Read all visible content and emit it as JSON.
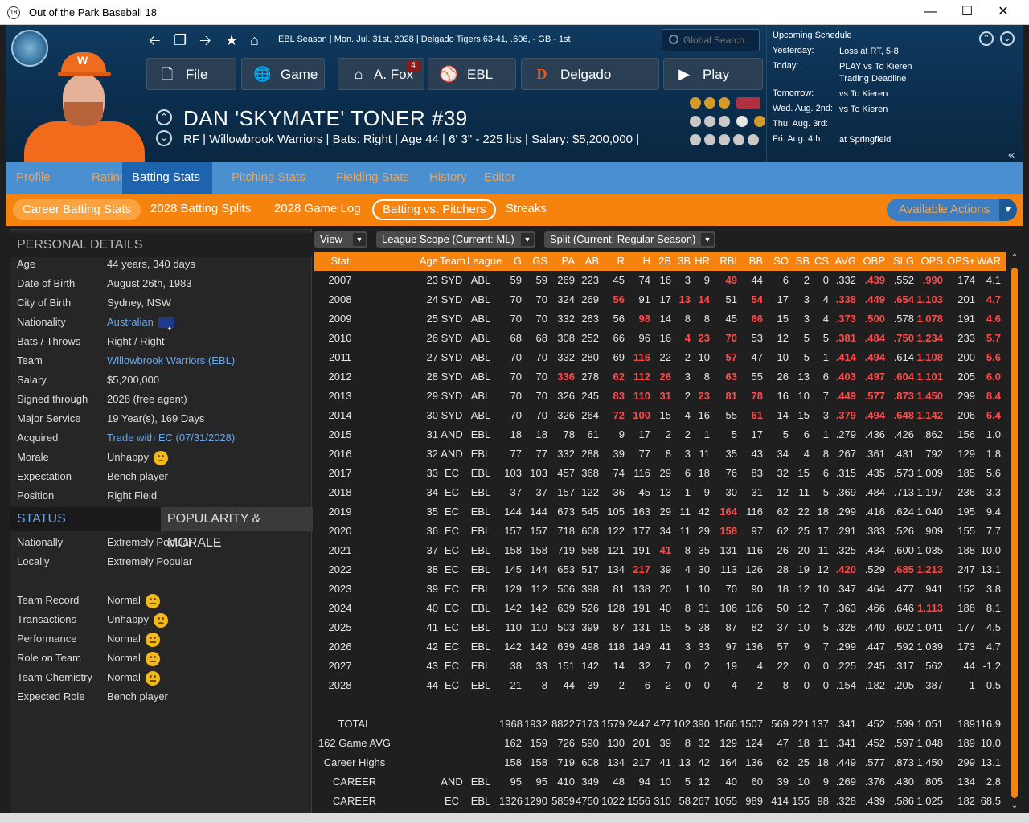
{
  "window": {
    "title": "Out of the Park Baseball 18",
    "app_icon": "18"
  },
  "header": {
    "context": "EBL Season  |  Mon. Jul. 31st, 2028  |  Delgado Tigers  63-41, .606, - GB - 1st",
    "search_placeholder": "Global Search...",
    "nav_buttons": [
      {
        "label": "File",
        "icon": "file-icon",
        "glyph": "🗋"
      },
      {
        "label": "Game",
        "icon": "globe-icon",
        "glyph": "🌐"
      },
      {
        "label": "A. Fox",
        "icon": "home-icon",
        "glyph": "⌂",
        "badge": "4"
      },
      {
        "label": "EBL",
        "icon": "league-logo-icon",
        "glyph": "⚾"
      },
      {
        "label": "Delgado",
        "icon": "team-logo-icon",
        "glyph": "D"
      },
      {
        "label": "Play",
        "icon": "play-icon",
        "glyph": "▶"
      }
    ],
    "player_name": "DAN 'SKYMATE' TONER  #39",
    "player_info": "RF | Willowbrook Warriors  |  Bats: Right  |  Age 44  |  6' 3\" - 225 lbs  |  Salary: $5,200,000  |",
    "cap_letter": "W"
  },
  "schedule": {
    "heading": "Upcoming Schedule",
    "rows": [
      {
        "day": "Yesterday:",
        "text": "Loss at RT, 5-8"
      },
      {
        "day": "Today:",
        "text": "PLAY vs To Kieren",
        "extra": "Trading Deadline"
      },
      {
        "day": "Tomorrow:",
        "text": "vs To Kieren"
      },
      {
        "day": "Wed. Aug. 2nd:",
        "text": "vs To Kieren"
      },
      {
        "day": "Thu. Aug. 3rd:",
        "text": ""
      },
      {
        "day": "Fri. Aug. 4th:",
        "text": "at Springfield"
      }
    ]
  },
  "tabs": [
    "Profile",
    "Ratings",
    "Batting Stats",
    "Pitching Stats",
    "Fielding Stats",
    "History",
    "Editor"
  ],
  "active_tab": "Batting Stats",
  "subtabs": [
    "Career Batting Stats",
    "2028 Batting Splits",
    "2028 Game Log",
    "Batting vs. Pitchers",
    "Streaks"
  ],
  "available_actions": "Available Actions",
  "personal_details": {
    "heading": "PERSONAL DETAILS",
    "rows": [
      {
        "k": "Age",
        "v": "44 years, 340 days"
      },
      {
        "k": "Date of Birth",
        "v": "August 26th, 1983"
      },
      {
        "k": "City of Birth",
        "v": "Sydney, NSW"
      },
      {
        "k": "Nationality",
        "v": "Australian",
        "link": true,
        "flag": true
      },
      {
        "k": "Bats / Throws",
        "v": "Right / Right"
      },
      {
        "k": "Team",
        "v": "Willowbrook Warriors (EBL)",
        "link": true
      },
      {
        "k": "Salary",
        "v": "$5,200,000"
      },
      {
        "k": "Signed through",
        "v": "2028 (free agent)"
      },
      {
        "k": "Major Service",
        "v": "19 Year(s), 169 Days"
      },
      {
        "k": "Acquired",
        "v": "Trade with EC (07/31/2028)",
        "link": true
      },
      {
        "k": "Morale",
        "v": "Unhappy",
        "emoji": "sad"
      },
      {
        "k": "Expectation",
        "v": "Bench player"
      },
      {
        "k": "Position",
        "v": "Right Field"
      }
    ]
  },
  "status": {
    "tab_status": "STATUS",
    "tab_popularity": "POPULARITY & MORALE",
    "rows": [
      {
        "k": "Nationally",
        "v": "Extremely Popular"
      },
      {
        "k": "Locally",
        "v": "Extremely Popular"
      },
      {
        "k": "",
        "v": ""
      },
      {
        "k": "Team Record",
        "v": "Normal",
        "emoji": "neutral"
      },
      {
        "k": "Transactions",
        "v": "Unhappy",
        "emoji": "sad"
      },
      {
        "k": "Performance",
        "v": "Normal",
        "emoji": "neutral"
      },
      {
        "k": "Role on Team",
        "v": "Normal",
        "emoji": "neutral"
      },
      {
        "k": "Team Chemistry",
        "v": "Normal",
        "emoji": "neutral"
      },
      {
        "k": "Expected Role",
        "v": "Bench player"
      }
    ]
  },
  "filters": {
    "view": "View",
    "scope": "League Scope  (Current: ML)",
    "split": "Split  (Current: Regular Season)"
  },
  "columns": [
    "Stat",
    "Age",
    "Team",
    "League",
    "G",
    "GS",
    "PA",
    "AB",
    "R",
    "H",
    "2B",
    "3B",
    "HR",
    "RBI",
    "BB",
    "SO",
    "SB",
    "CS",
    "AVG",
    "OBP",
    "SLG",
    "OPS",
    "OPS+",
    "WAR"
  ],
  "rows": [
    {
      "c": [
        "2007",
        "23",
        "SYD",
        "ABL",
        "59",
        "59",
        "269",
        "223",
        "45",
        "74",
        "16",
        "3",
        "9",
        "49",
        "44",
        "6",
        "2",
        "0",
        ".332",
        ".439",
        ".552",
        ".990",
        "174",
        "4.1"
      ],
      "r": [
        13,
        19,
        21
      ]
    },
    {
      "c": [
        "2008",
        "24",
        "SYD",
        "ABL",
        "70",
        "70",
        "324",
        "269",
        "56",
        "91",
        "17",
        "13",
        "14",
        "51",
        "54",
        "17",
        "3",
        "4",
        ".338",
        ".449",
        ".654",
        "1.103",
        "201",
        "4.7"
      ],
      "r": [
        8,
        11,
        12,
        14,
        18,
        19,
        20,
        21,
        23
      ]
    },
    {
      "c": [
        "2009",
        "25",
        "SYD",
        "ABL",
        "70",
        "70",
        "332",
        "263",
        "56",
        "98",
        "14",
        "8",
        "8",
        "45",
        "66",
        "15",
        "3",
        "4",
        ".373",
        ".500",
        ".578",
        "1.078",
        "191",
        "4.6"
      ],
      "r": [
        9,
        14,
        18,
        19,
        21,
        23
      ]
    },
    {
      "c": [
        "2010",
        "26",
        "SYD",
        "ABL",
        "68",
        "68",
        "308",
        "252",
        "66",
        "96",
        "16",
        "4",
        "23",
        "70",
        "53",
        "12",
        "5",
        "5",
        ".381",
        ".484",
        ".750",
        "1.234",
        "233",
        "5.7"
      ],
      "r": [
        11,
        12,
        13,
        18,
        19,
        20,
        21,
        23
      ]
    },
    {
      "c": [
        "2011",
        "27",
        "SYD",
        "ABL",
        "70",
        "70",
        "332",
        "280",
        "69",
        "116",
        "22",
        "2",
        "10",
        "57",
        "47",
        "10",
        "5",
        "1",
        ".414",
        ".494",
        ".614",
        "1.108",
        "200",
        "5.6"
      ],
      "r": [
        9,
        13,
        18,
        19,
        21,
        23
      ]
    },
    {
      "c": [
        "2012",
        "28",
        "SYD",
        "ABL",
        "70",
        "70",
        "336",
        "278",
        "62",
        "112",
        "26",
        "3",
        "8",
        "63",
        "55",
        "26",
        "13",
        "6",
        ".403",
        ".497",
        ".604",
        "1.101",
        "205",
        "6.0"
      ],
      "r": [
        6,
        8,
        9,
        10,
        13,
        18,
        19,
        20,
        21,
        23
      ]
    },
    {
      "c": [
        "2013",
        "29",
        "SYD",
        "ABL",
        "70",
        "70",
        "326",
        "245",
        "83",
        "110",
        "31",
        "2",
        "23",
        "81",
        "78",
        "16",
        "10",
        "7",
        ".449",
        ".577",
        ".873",
        "1.450",
        "299",
        "8.4"
      ],
      "r": [
        8,
        9,
        10,
        12,
        13,
        14,
        18,
        19,
        20,
        21,
        23
      ]
    },
    {
      "c": [
        "2014",
        "30",
        "SYD",
        "ABL",
        "70",
        "70",
        "326",
        "264",
        "72",
        "100",
        "15",
        "4",
        "16",
        "55",
        "61",
        "14",
        "15",
        "3",
        ".379",
        ".494",
        ".648",
        "1.142",
        "206",
        "6.4"
      ],
      "r": [
        8,
        9,
        14,
        18,
        19,
        20,
        21,
        23
      ]
    },
    {
      "c": [
        "2015",
        "31",
        "AND",
        "EBL",
        "18",
        "18",
        "78",
        "61",
        "9",
        "17",
        "2",
        "2",
        "1",
        "5",
        "17",
        "5",
        "6",
        "1",
        ".279",
        ".436",
        ".426",
        ".862",
        "156",
        "1.0"
      ],
      "r": []
    },
    {
      "c": [
        "2016",
        "32",
        "AND",
        "EBL",
        "77",
        "77",
        "332",
        "288",
        "39",
        "77",
        "8",
        "3",
        "11",
        "35",
        "43",
        "34",
        "4",
        "8",
        ".267",
        ".361",
        ".431",
        ".792",
        "129",
        "1.8"
      ],
      "r": []
    },
    {
      "c": [
        "2017",
        "33",
        "EC",
        "EBL",
        "103",
        "103",
        "457",
        "368",
        "74",
        "116",
        "29",
        "6",
        "18",
        "76",
        "83",
        "32",
        "15",
        "6",
        ".315",
        ".435",
        ".573",
        "1.009",
        "185",
        "5.6"
      ],
      "r": []
    },
    {
      "c": [
        "2018",
        "34",
        "EC",
        "EBL",
        "37",
        "37",
        "157",
        "122",
        "36",
        "45",
        "13",
        "1",
        "9",
        "30",
        "31",
        "12",
        "11",
        "5",
        ".369",
        ".484",
        ".713",
        "1.197",
        "236",
        "3.3"
      ],
      "r": []
    },
    {
      "c": [
        "2019",
        "35",
        "EC",
        "EBL",
        "144",
        "144",
        "673",
        "545",
        "105",
        "163",
        "29",
        "11",
        "42",
        "164",
        "116",
        "62",
        "22",
        "18",
        ".299",
        ".416",
        ".624",
        "1.040",
        "195",
        "9.4"
      ],
      "r": [
        13
      ]
    },
    {
      "c": [
        "2020",
        "36",
        "EC",
        "EBL",
        "157",
        "157",
        "718",
        "608",
        "122",
        "177",
        "34",
        "11",
        "29",
        "158",
        "97",
        "62",
        "25",
        "17",
        ".291",
        ".383",
        ".526",
        ".909",
        "155",
        "7.7"
      ],
      "r": [
        13
      ]
    },
    {
      "c": [
        "2021",
        "37",
        "EC",
        "EBL",
        "158",
        "158",
        "719",
        "588",
        "121",
        "191",
        "41",
        "8",
        "35",
        "131",
        "116",
        "26",
        "20",
        "11",
        ".325",
        ".434",
        ".600",
        "1.035",
        "188",
        "10.0"
      ],
      "r": [
        10
      ]
    },
    {
      "c": [
        "2022",
        "38",
        "EC",
        "EBL",
        "145",
        "144",
        "653",
        "517",
        "134",
        "217",
        "39",
        "4",
        "30",
        "113",
        "126",
        "28",
        "19",
        "12",
        ".420",
        ".529",
        ".685",
        "1.213",
        "247",
        "13.1"
      ],
      "r": [
        9,
        18,
        20,
        21
      ]
    },
    {
      "c": [
        "2023",
        "39",
        "EC",
        "EBL",
        "129",
        "112",
        "506",
        "398",
        "81",
        "138",
        "20",
        "1",
        "10",
        "70",
        "90",
        "18",
        "12",
        "10",
        ".347",
        ".464",
        ".477",
        ".941",
        "152",
        "3.8"
      ],
      "r": []
    },
    {
      "c": [
        "2024",
        "40",
        "EC",
        "EBL",
        "142",
        "142",
        "639",
        "526",
        "128",
        "191",
        "40",
        "8",
        "31",
        "106",
        "106",
        "50",
        "12",
        "7",
        ".363",
        ".466",
        ".646",
        "1.113",
        "188",
        "8.1"
      ],
      "r": [
        21
      ]
    },
    {
      "c": [
        "2025",
        "41",
        "EC",
        "EBL",
        "110",
        "110",
        "503",
        "399",
        "87",
        "131",
        "15",
        "5",
        "28",
        "87",
        "82",
        "37",
        "10",
        "5",
        ".328",
        ".440",
        ".602",
        "1.041",
        "177",
        "4.5"
      ],
      "r": []
    },
    {
      "c": [
        "2026",
        "42",
        "EC",
        "EBL",
        "142",
        "142",
        "639",
        "498",
        "118",
        "149",
        "41",
        "3",
        "33",
        "97",
        "136",
        "57",
        "9",
        "7",
        ".299",
        ".447",
        ".592",
        "1.039",
        "173",
        "4.7"
      ],
      "r": []
    },
    {
      "c": [
        "2027",
        "43",
        "EC",
        "EBL",
        "38",
        "33",
        "151",
        "142",
        "14",
        "32",
        "7",
        "0",
        "2",
        "19",
        "4",
        "22",
        "0",
        "0",
        ".225",
        ".245",
        ".317",
        ".562",
        "44",
        "-1.2"
      ],
      "r": []
    },
    {
      "c": [
        "2028",
        "44",
        "EC",
        "EBL",
        "21",
        "8",
        "44",
        "39",
        "2",
        "6",
        "2",
        "0",
        "0",
        "4",
        "2",
        "8",
        "0",
        "0",
        ".154",
        ".182",
        ".205",
        ".387",
        "1",
        "-0.5"
      ],
      "r": []
    }
  ],
  "summary": [
    {
      "c": [
        "TOTAL",
        "",
        "",
        "",
        "1968",
        "1932",
        "8822",
        "7173",
        "1579",
        "2447",
        "477",
        "102",
        "390",
        "1566",
        "1507",
        "569",
        "221",
        "137",
        ".341",
        ".452",
        ".599",
        "1.051",
        "189",
        "116.9"
      ]
    },
    {
      "c": [
        "162 Game AVG",
        "",
        "",
        "",
        "162",
        "159",
        "726",
        "590",
        "130",
        "201",
        "39",
        "8",
        "32",
        "129",
        "124",
        "47",
        "18",
        "11",
        ".341",
        ".452",
        ".597",
        "1.048",
        "189",
        "10.0"
      ]
    },
    {
      "c": [
        "Career Highs",
        "",
        "",
        "",
        "158",
        "158",
        "719",
        "608",
        "134",
        "217",
        "41",
        "13",
        "42",
        "164",
        "136",
        "62",
        "25",
        "18",
        ".449",
        ".577",
        ".873",
        "1.450",
        "299",
        "13.1"
      ]
    },
    {
      "c": [
        "CAREER",
        "",
        "AND",
        "EBL",
        "95",
        "95",
        "410",
        "349",
        "48",
        "94",
        "10",
        "5",
        "12",
        "40",
        "60",
        "39",
        "10",
        "9",
        ".269",
        ".376",
        ".430",
        ".805",
        "134",
        "2.8"
      ]
    },
    {
      "c": [
        "CAREER",
        "",
        "EC",
        "EBL",
        "1326",
        "1290",
        "5859",
        "4750",
        "1022",
        "1556",
        "310",
        "58",
        "267",
        "1055",
        "989",
        "414",
        "155",
        "98",
        ".328",
        ".439",
        ".586",
        "1.025",
        "182",
        "68.5"
      ]
    }
  ]
}
